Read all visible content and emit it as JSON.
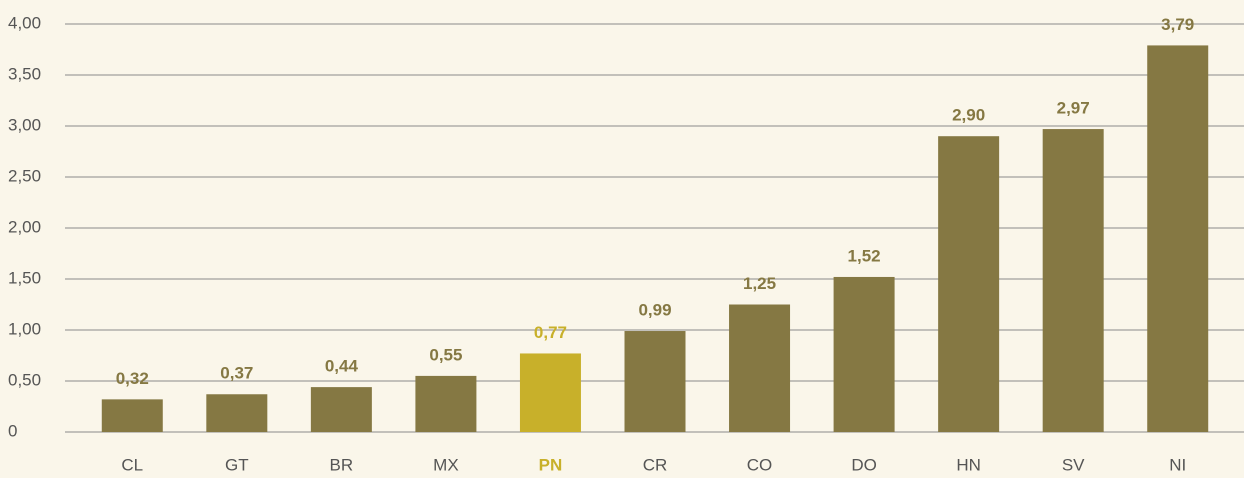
{
  "chart_data": {
    "type": "bar",
    "categories": [
      "CL",
      "GT",
      "BR",
      "MX",
      "PN",
      "CR",
      "CO",
      "DO",
      "HN",
      "SV",
      "NI"
    ],
    "values": [
      0.32,
      0.37,
      0.44,
      0.55,
      0.77,
      0.99,
      1.25,
      1.52,
      2.9,
      2.97,
      3.79
    ],
    "value_labels": [
      "0,32",
      "0,37",
      "0,44",
      "0,55",
      "0,77",
      "0,99",
      "1,25",
      "1,52",
      "2,90",
      "2,97",
      "3,79"
    ],
    "color": "#857843",
    "highlight_color": "#c8b02a",
    "highlight_category": "PN",
    "ylim": [
      0,
      4
    ],
    "yticks": [
      0,
      {
        "value": 0.5,
        "label": "0,50"
      },
      {
        "value": 1,
        "label": "1,00"
      },
      {
        "value": 1.5,
        "label": "1,50"
      },
      {
        "value": 2,
        "label": "2,00"
      },
      {
        "value": 2.5,
        "label": "2,50"
      },
      {
        "value": 3,
        "label": "3,00"
      },
      {
        "value": 3.5,
        "label": "3,50"
      },
      {
        "value": 4,
        "label": "4,00"
      }
    ],
    "grid": true
  }
}
